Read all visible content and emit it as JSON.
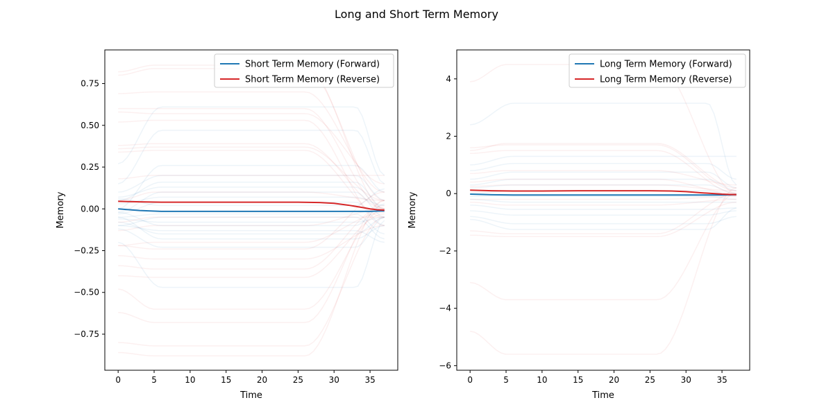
{
  "figure": {
    "title": "Long and Short Term Memory"
  },
  "chart_data": [
    {
      "type": "line",
      "xlabel": "Time",
      "ylabel": "Memory",
      "xlim": [
        -1.85,
        38.85
      ],
      "ylim": [
        -0.9659,
        0.9514
      ],
      "xticks": [
        0,
        5,
        10,
        15,
        20,
        25,
        30,
        35
      ],
      "yticks": [
        -0.75,
        -0.5,
        -0.25,
        0.0,
        0.25,
        0.5,
        0.75
      ],
      "ytick_labels": [
        "−0.75",
        "−0.50",
        "−0.25",
        "0.00",
        "0.25",
        "0.50",
        "0.75"
      ],
      "legend_position": "upper right",
      "x_range": [
        0,
        37
      ],
      "series": [
        {
          "name": "Short Term Memory (Forward)",
          "color": "#1f77b4",
          "x": [
            0,
            3,
            6,
            10,
            15,
            20,
            25,
            30,
            33,
            35,
            37
          ],
          "values": [
            0.0,
            -0.01,
            -0.015,
            -0.015,
            -0.015,
            -0.015,
            -0.015,
            -0.015,
            -0.015,
            -0.015,
            -0.012
          ]
        },
        {
          "name": "Short Term Memory (Reverse)",
          "color": "#d62728",
          "x": [
            0,
            3,
            6,
            10,
            15,
            20,
            25,
            28,
            30,
            32,
            34,
            35,
            36,
            37
          ],
          "values": [
            0.045,
            0.042,
            0.04,
            0.04,
            0.04,
            0.04,
            0.04,
            0.038,
            0.033,
            0.022,
            0.008,
            0.0,
            -0.005,
            -0.008
          ]
        }
      ],
      "background_traces": {
        "forward_color": "#1f77b4",
        "reverse_color": "#d62728",
        "forward_levels": [
          0.61,
          0.47,
          0.26,
          0.2,
          0.16,
          0.13,
          0.1,
          0.07,
          0.04,
          0.02,
          -0.03,
          -0.05,
          -0.08,
          -0.1,
          -0.13,
          -0.15,
          -0.18,
          -0.23,
          -0.47
        ],
        "forward_starts": [
          0.27,
          0.15,
          0.0,
          0.1,
          0.05,
          0.07,
          -0.02,
          0.03,
          -0.03,
          0.06,
          -0.05,
          -0.1,
          -0.06,
          -0.02,
          -0.1,
          -0.08,
          -0.05,
          -0.12,
          -0.2
        ],
        "forward_ends": [
          0.2,
          0.15,
          0.1,
          0.05,
          0.0,
          -0.02,
          -0.05,
          0.02,
          -0.1,
          0.12,
          -0.15,
          -0.18,
          -0.05,
          0.03,
          -0.2,
          -0.05,
          -0.1,
          -0.05,
          -0.07
        ],
        "reverse_levels": [
          0.86,
          0.84,
          0.7,
          0.6,
          0.57,
          0.53,
          0.39,
          0.37,
          0.35,
          0.2,
          0.1,
          -0.05,
          -0.1,
          -0.2,
          -0.24,
          -0.3,
          -0.36,
          -0.41,
          -0.6,
          -0.68,
          -0.82,
          -0.88
        ],
        "reverse_starts": [
          0.82,
          0.8,
          0.69,
          0.6,
          0.58,
          0.52,
          0.38,
          0.36,
          0.34,
          0.18,
          0.05,
          -0.08,
          -0.13,
          -0.22,
          -0.22,
          -0.28,
          -0.34,
          -0.4,
          -0.48,
          -0.62,
          -0.8,
          -0.86
        ],
        "reverse_ends": [
          0.0,
          0.05,
          0.1,
          0.0,
          0.15,
          -0.1,
          0.0,
          0.05,
          -0.05,
          0.2,
          0.05,
          -0.05,
          0.0,
          -0.02,
          0.1,
          -0.1,
          0.02,
          -0.03,
          0.0,
          0.05,
          -0.05,
          0.05
        ]
      }
    },
    {
      "type": "line",
      "xlabel": "Time",
      "ylabel": "Memory",
      "xlim": [
        -1.85,
        38.85
      ],
      "ylim": [
        -6.16,
        5.01
      ],
      "xticks": [
        0,
        5,
        10,
        15,
        20,
        25,
        30,
        35
      ],
      "yticks": [
        -6,
        -4,
        -2,
        0,
        2,
        4
      ],
      "ytick_labels": [
        "−6",
        "−4",
        "−2",
        "0",
        "2",
        "4"
      ],
      "legend_position": "upper right",
      "x_range": [
        0,
        37
      ],
      "series": [
        {
          "name": "Long Term Memory (Forward)",
          "color": "#1f77b4",
          "x": [
            0,
            3,
            6,
            10,
            15,
            20,
            25,
            30,
            33,
            35,
            37
          ],
          "values": [
            -0.02,
            -0.04,
            -0.05,
            -0.05,
            -0.05,
            -0.05,
            -0.05,
            -0.05,
            -0.05,
            -0.05,
            -0.04
          ]
        },
        {
          "name": "Long Term Memory (Reverse)",
          "color": "#d62728",
          "x": [
            0,
            3,
            6,
            10,
            15,
            20,
            25,
            28,
            30,
            32,
            34,
            35,
            36,
            37
          ],
          "values": [
            0.12,
            0.1,
            0.09,
            0.09,
            0.1,
            0.1,
            0.1,
            0.09,
            0.07,
            0.03,
            0.0,
            -0.02,
            -0.03,
            -0.04
          ]
        }
      ],
      "background_traces": {
        "forward_color": "#1f77b4",
        "reverse_color": "#d62728",
        "forward_levels": [
          3.15,
          1.3,
          1.05,
          0.75,
          0.5,
          0.3,
          0.1,
          -0.1,
          -0.3,
          -0.55,
          -0.75,
          -1.05,
          -1.25
        ],
        "forward_starts": [
          2.4,
          1.0,
          0.8,
          0.5,
          0.3,
          0.2,
          0.0,
          -0.1,
          -0.2,
          -0.4,
          -0.6,
          -0.8,
          -0.9
        ],
        "forward_ends": [
          0.3,
          1.3,
          0.5,
          0.2,
          0.1,
          0.0,
          -0.1,
          -0.2,
          -0.3,
          -0.5,
          -0.6,
          -0.8,
          -0.5
        ],
        "reverse_levels": [
          4.5,
          1.75,
          1.7,
          1.5,
          0.8,
          0.5,
          0.3,
          -0.2,
          -0.4,
          -1.4,
          -1.5,
          -3.7,
          -5.6
        ],
        "reverse_starts": [
          3.9,
          1.5,
          1.6,
          1.4,
          0.7,
          0.4,
          0.25,
          -0.2,
          -0.3,
          -1.3,
          -1.45,
          -3.1,
          -4.8
        ],
        "reverse_ends": [
          0.0,
          0.2,
          0.1,
          0.0,
          0.3,
          0.0,
          0.1,
          -0.1,
          -0.2,
          0.0,
          -0.3,
          0.0,
          0.2
        ]
      }
    }
  ]
}
